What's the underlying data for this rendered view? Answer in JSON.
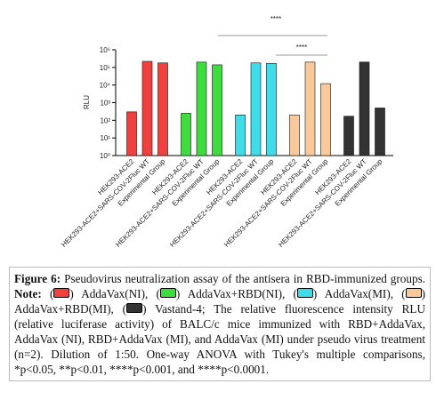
{
  "chart_data": {
    "type": "bar",
    "y_label": "RLU",
    "log_scale": true,
    "ylim": [
      1,
      1000000
    ],
    "yticks": [
      {
        "value": 1,
        "label": "10⁰"
      },
      {
        "value": 10,
        "label": "10¹"
      },
      {
        "value": 100,
        "label": "10²"
      },
      {
        "value": 1000,
        "label": "10³"
      },
      {
        "value": 10000,
        "label": "10⁴"
      },
      {
        "value": 100000,
        "label": "10⁵"
      },
      {
        "value": 1000000,
        "label": "10⁶"
      }
    ],
    "categories": [
      "HEK293-ACE2",
      "HEK293-ACE2+SARS-COV-2Fluc WT",
      "Experimental Group",
      "HEK293-ACE2",
      "HEK293-ACE2+SARS-COV-2Fluc WT",
      "Experimental Group",
      "HEK293-ACE2",
      "HEK293-ACE2+SARS-COV-2Fluc WT",
      "Experimental Group",
      "HEK293-ACE2",
      "HEK293-ACE2+SARS-COV-2Fluc WT",
      "Experimental Group",
      "HEK293-ACE2",
      "HEK293-ACE2+SARS-COV-2Fluc WT",
      "Experimental Group"
    ],
    "values": [
      300,
      220000,
      180000,
      250,
      200000,
      140000,
      200,
      180000,
      170000,
      200,
      200000,
      12000,
      170,
      200000,
      500
    ],
    "colors": [
      "#f0413f",
      "#f0413f",
      "#f0413f",
      "#3fdc3f",
      "#3fdc3f",
      "#3fdc3f",
      "#3fdcea",
      "#3fdcea",
      "#3fdcea",
      "#f8c99a",
      "#f8c99a",
      "#f8c99a",
      "#333333",
      "#333333",
      "#333333"
    ],
    "annotations": [
      "****",
      "****"
    ]
  },
  "caption": {
    "segments": [
      {
        "text": "Figure 6:",
        "bold": true
      },
      {
        "text": " Pseudovirus neutralization assay of the antisera in RBD-immunized groups. "
      },
      {
        "text": "Note:",
        "bold": true
      },
      {
        "text": " ("
      },
      {
        "swatch": "#f0413f"
      },
      {
        "text": ") AddaVax(NI), ("
      },
      {
        "swatch": "#3fdc3f"
      },
      {
        "text": ") AddaVax+RBD(NI), ("
      },
      {
        "swatch": "#3fdcea"
      },
      {
        "text": ") AddaVax(MI), ("
      },
      {
        "swatch": "#f8c99a"
      },
      {
        "text": ") AddaVax+RBD(MI), ("
      },
      {
        "swatch": "#333333"
      },
      {
        "text": ") Vastand-4; The relative fluorescence intensity RLU (relative luciferase activity) of BALC/c mice immunized with RBD+AddaVax, AddaVax (NI), RBD+AddaVax (MI), and AddaVax (MI) under pseudo virus treatment (n=2). Dilution of 1:50. One-way ANOVA with Tukey's multiple comparisons, *p<0.05, **p<0.01, ****p<0.001, and ****p<0.0001."
      }
    ]
  }
}
